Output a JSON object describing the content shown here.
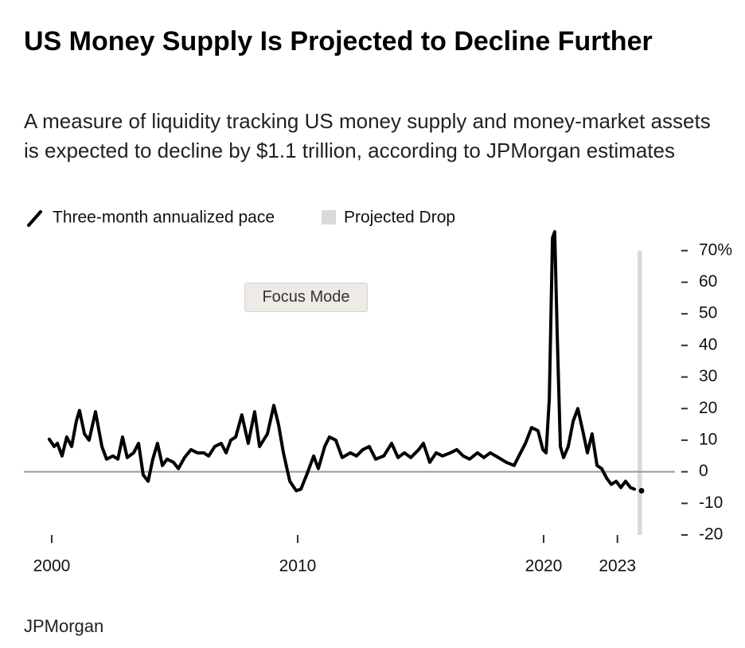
{
  "chart_data": {
    "type": "line",
    "title": "US Money Supply Is Projected to Decline Further",
    "subtitle": "A measure of liquidity tracking US money supply and money-market assets is expected to decline by $1.1 trillion, according to JPMorgan estimates",
    "source": "JPMorgan",
    "focus_mode_label": "Focus Mode",
    "x": [
      1999.9,
      2000.1,
      2000.23,
      2000.42,
      2000.61,
      2000.81,
      2001.0,
      2001.13,
      2001.33,
      2001.52,
      2001.78,
      2002.04,
      2002.23,
      2002.49,
      2002.69,
      2002.88,
      2003.07,
      2003.33,
      2003.53,
      2003.72,
      2003.92,
      2004.11,
      2004.3,
      2004.5,
      2004.69,
      2004.95,
      2005.15,
      2005.4,
      2005.66,
      2005.92,
      2006.18,
      2006.38,
      2006.63,
      2006.89,
      2007.09,
      2007.28,
      2007.48,
      2007.73,
      2007.99,
      2008.25,
      2008.45,
      2008.77,
      2009.03,
      2009.22,
      2009.42,
      2009.68,
      2009.94,
      2010.13,
      2010.39,
      2010.65,
      2010.84,
      2011.1,
      2011.29,
      2011.55,
      2011.81,
      2012.14,
      2012.39,
      2012.65,
      2012.91,
      2013.17,
      2013.5,
      2013.82,
      2014.08,
      2014.34,
      2014.6,
      2014.92,
      2015.11,
      2015.37,
      2015.63,
      2015.89,
      2016.21,
      2016.47,
      2016.73,
      2016.99,
      2017.31,
      2017.57,
      2017.83,
      2018.16,
      2018.48,
      2018.8,
      2019.06,
      2019.26,
      2019.51,
      2019.77,
      2019.97,
      2020.1,
      2020.23,
      2020.36,
      2020.45,
      2020.55,
      2020.68,
      2020.81,
      2021.0,
      2021.2,
      2021.39,
      2021.59,
      2021.78,
      2021.97,
      2022.17,
      2022.36,
      2022.56,
      2022.75,
      2022.95,
      2023.14,
      2023.33,
      2023.53,
      2023.69,
      2023.82,
      2023.98
    ],
    "series": [
      {
        "name": "Three-month annualized pace",
        "color": "#000000",
        "values": [
          10.3,
          8,
          9,
          5,
          11,
          8,
          16,
          19.4,
          12,
          10,
          19,
          8,
          4,
          5,
          4,
          11,
          4.5,
          6,
          9,
          -1,
          -3,
          4,
          9,
          2,
          4,
          3,
          1,
          4.5,
          7,
          6,
          6,
          5,
          8,
          9,
          6,
          10,
          11,
          18,
          9,
          19,
          8,
          12,
          21,
          15,
          6,
          -3,
          -6,
          -5.5,
          -0.5,
          5,
          1,
          8,
          11,
          10,
          4.5,
          6,
          5,
          7,
          8,
          4,
          5,
          9,
          4.5,
          6,
          4.5,
          7,
          9,
          3,
          6,
          5,
          6,
          7,
          5,
          4,
          6,
          4.5,
          6,
          4.5,
          3,
          2,
          6,
          9,
          14,
          13,
          7,
          6,
          23,
          74,
          76,
          44,
          8,
          4.5,
          8,
          16,
          20,
          13,
          6,
          12,
          2,
          1,
          -2,
          -4,
          -3,
          -5,
          -3,
          -5,
          -5.5,
          null,
          -6
        ]
      }
    ],
    "projected_drop": {
      "name": "Projected Drop",
      "color": "#d9d9d9",
      "x": [
        2023.82,
        2024.0
      ]
    },
    "xlim": [
      1999.8,
      2024.2
    ],
    "xticks": [
      2000,
      2010,
      2020,
      2023
    ],
    "ylim": [
      -20,
      76
    ],
    "yticks": [
      -20,
      -10,
      0,
      10,
      20,
      30,
      40,
      50,
      60,
      {
        "value": 70,
        "label": "70%"
      }
    ]
  }
}
